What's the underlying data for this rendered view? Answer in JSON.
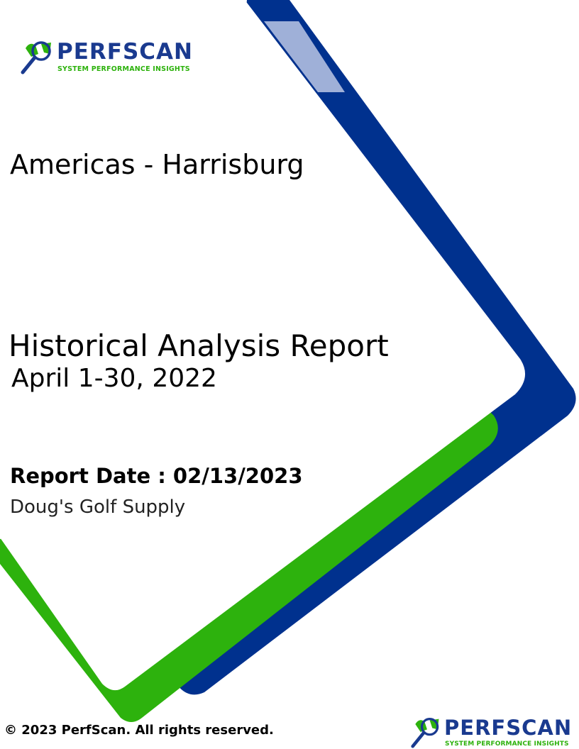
{
  "brand": {
    "name": "PERFSCAN",
    "tagline": "SYSTEM PERFORMANCE INSIGHTS",
    "colors": {
      "navy": "#00318e",
      "green": "#2db20d",
      "light_blue": "#9fb0d8"
    },
    "logo_icon": "magnifier-icon"
  },
  "cover": {
    "location": "Americas - Harrisburg",
    "title": "Historical Analysis Report",
    "period": "April 1-30, 2022",
    "report_date": "Report Date : 02/13/2023",
    "company": "Doug's Golf Supply"
  },
  "footer": {
    "copyright": "© 2023 PerfScan. All rights reserved."
  }
}
